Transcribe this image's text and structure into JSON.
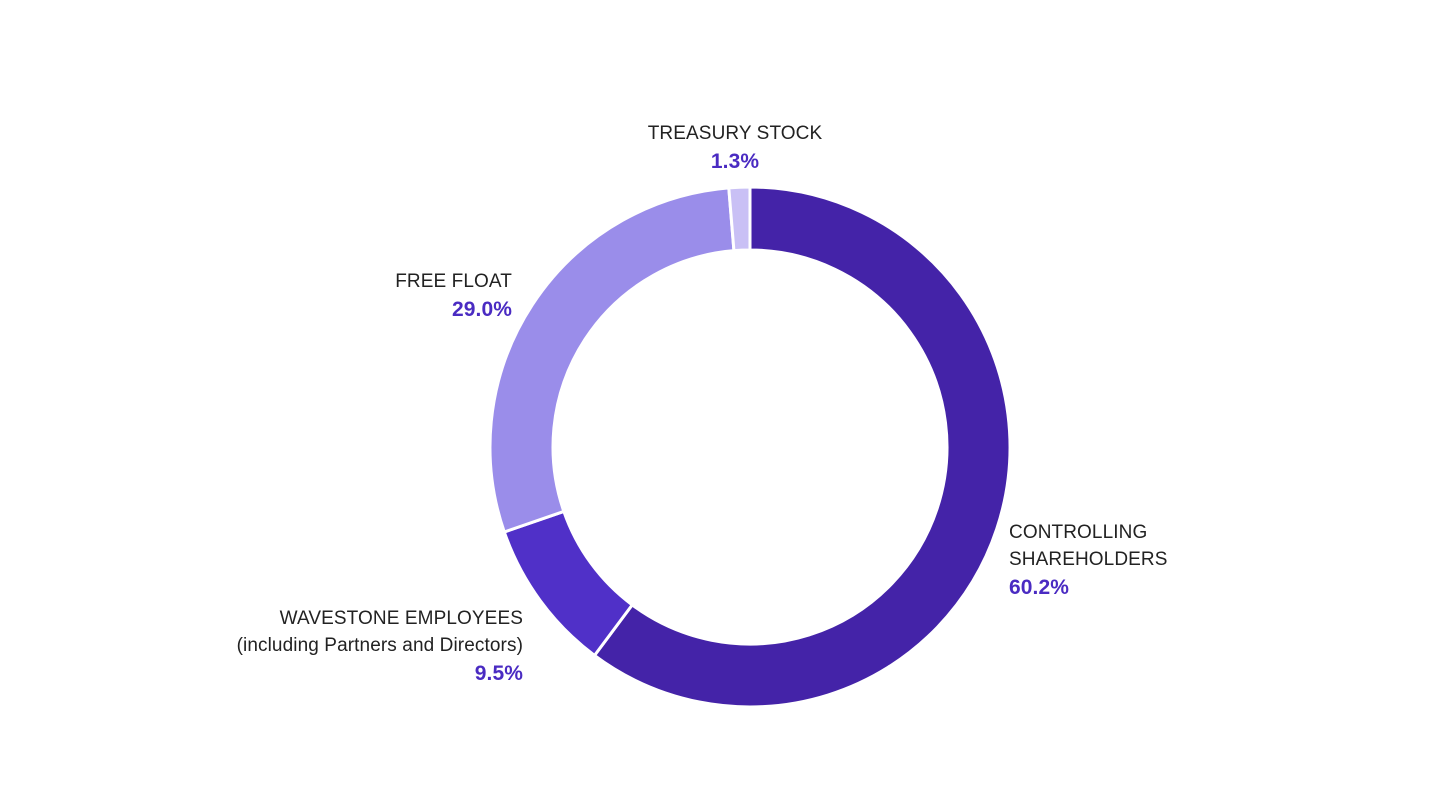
{
  "chart_data": {
    "type": "pie",
    "donut": true,
    "start_angle": "12 o'clock",
    "direction": "clockwise",
    "slices": [
      {
        "name": "CONTROLLING\n SHAREHOLDERS",
        "value": 60.2,
        "value_label": "60.2%",
        "color": "#4423a8"
      },
      {
        "name": "WAVESTONE EMPLOYEES\n(including Partners and Directors)",
        "value": 9.5,
        "value_label": "9.5%",
        "color": "#5030c8"
      },
      {
        "name": "FREE FLOAT",
        "value": 29.0,
        "value_label": "29.0%",
        "color": "#9a8dea"
      },
      {
        "name": "TREASURY STOCK",
        "value": 1.3,
        "value_label": "1.3%",
        "color": "#c9c0f5"
      }
    ]
  }
}
